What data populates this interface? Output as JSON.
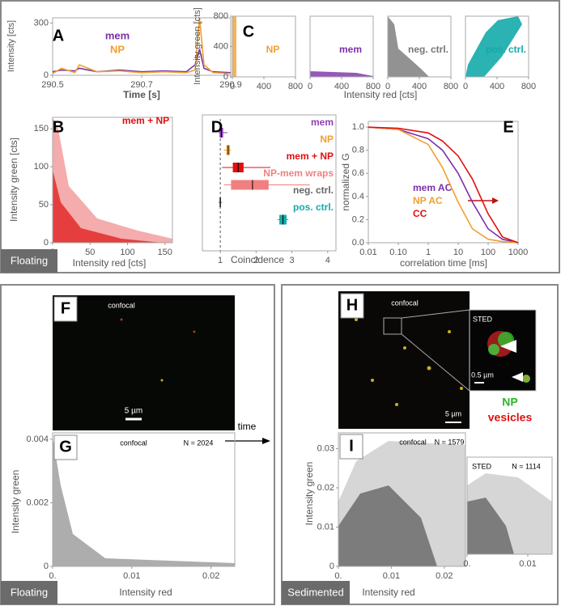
{
  "panels": {
    "A": {
      "label": "A",
      "xlabel": "Time [s]",
      "ylabel": "Intensity [cts]",
      "xlim": [
        290.5,
        290.9
      ],
      "xticks": [
        290.5,
        290.7,
        290.9
      ],
      "ylim": [
        0,
        330
      ],
      "yticks": [
        0,
        300
      ],
      "series": [
        {
          "name": "mem",
          "color": "#7b2fa8",
          "x": [
            290.5,
            290.52,
            290.55,
            290.56,
            290.6,
            290.65,
            290.7,
            290.75,
            290.8,
            290.82,
            290.83,
            290.84,
            290.86,
            290.9
          ],
          "values": [
            20,
            30,
            25,
            40,
            20,
            30,
            20,
            25,
            20,
            60,
            150,
            40,
            20,
            15
          ]
        },
        {
          "name": "NP",
          "color": "#f0a030",
          "x": [
            290.5,
            290.52,
            290.55,
            290.56,
            290.6,
            290.65,
            290.7,
            290.75,
            290.8,
            290.82,
            290.83,
            290.84,
            290.86,
            290.9
          ],
          "values": [
            10,
            40,
            15,
            60,
            20,
            25,
            15,
            20,
            15,
            30,
            330,
            60,
            15,
            10
          ]
        }
      ]
    },
    "C": {
      "label": "C",
      "xlabel": "Intensity red [cts]",
      "ylabel": "Intensity green [cts]",
      "xlim": [
        0,
        800
      ],
      "xticks": [
        0,
        400,
        800
      ],
      "ylim": [
        0,
        800
      ],
      "yticks": [
        0,
        400,
        800
      ],
      "plots": [
        {
          "name": "NP",
          "color": "#f0a030"
        },
        {
          "name": "mem",
          "color": "#7b2fa8"
        },
        {
          "name": "neg. ctrl.",
          "color": "#777777"
        },
        {
          "name": "pos. ctrl.",
          "color": "#14aaaa"
        }
      ]
    },
    "B": {
      "label": "B",
      "title": "mem + NP",
      "xlabel": "Intensity red [cts]",
      "ylabel": "Intensity green [cts]",
      "xlim": [
        0,
        160
      ],
      "xticks": [
        0,
        50,
        100,
        150
      ],
      "ylim": [
        0,
        165
      ],
      "yticks": [
        0,
        50,
        100,
        150
      ],
      "color": "#e01010",
      "tag": "Floating"
    },
    "D": {
      "label": "D",
      "xlabel": "Coincidence",
      "xlim": [
        0.5,
        4.23
      ],
      "xticks": [
        1,
        2,
        3,
        4
      ],
      "reference": 1,
      "boxes": [
        {
          "name": "mem",
          "color": "#8e3fb5",
          "min": 0.95,
          "q1": 0.98,
          "median": 1.03,
          "q3": 1.08,
          "max": 1.2
        },
        {
          "name": "NP",
          "color": "#f0a030",
          "min": 1.1,
          "q1": 1.17,
          "median": 1.22,
          "q3": 1.27,
          "max": 1.3
        },
        {
          "name": "mem + NP",
          "color": "#e01010",
          "min": 1.05,
          "q1": 1.35,
          "median": 1.5,
          "q3": 1.65,
          "max": 2.4
        },
        {
          "name": "NP-mem wraps",
          "color": "#f08080",
          "min": 1.1,
          "q1": 1.3,
          "median": 1.9,
          "q3": 2.35,
          "max": 3.5
        },
        {
          "name": "neg. ctrl.",
          "color": "#666666",
          "min": 0.95,
          "q1": 0.98,
          "median": 1,
          "q3": 1.02,
          "max": 1.05
        },
        {
          "name": "pos. ctrl.",
          "color": "#14aaaa",
          "min": 2.6,
          "q1": 2.65,
          "median": 2.75,
          "q3": 2.85,
          "max": 2.9
        }
      ]
    },
    "E": {
      "label": "E",
      "xlabel": "correlation time [ms]",
      "ylabel": "normalized G",
      "log_x": true,
      "xlim": [
        0.01,
        1000
      ],
      "xticks": [
        0.01,
        {
          "value": 0.1,
          "label": "0.10"
        },
        1,
        10,
        100,
        1000
      ],
      "ylim": [
        0,
        1.05
      ],
      "yticks": [
        {
          "value": 0,
          "label": "0.0"
        },
        0.2,
        0.4,
        0.6,
        0.8,
        {
          "value": 1,
          "label": "1.0"
        }
      ],
      "x": [
        0.01,
        0.1,
        1,
        3,
        10,
        30,
        100,
        300,
        1000
      ],
      "series": [
        {
          "name": "mem AC",
          "color": "#7b2fa8",
          "values": [
            1,
            0.98,
            0.9,
            0.8,
            0.6,
            0.35,
            0.12,
            0.03,
            0
          ]
        },
        {
          "name": "NP AC",
          "color": "#f0a030",
          "values": [
            1,
            0.98,
            0.85,
            0.65,
            0.35,
            0.12,
            0.03,
            0.01,
            0
          ]
        },
        {
          "name": "CC",
          "color": "#e01010",
          "values": [
            1,
            0.99,
            0.95,
            0.88,
            0.75,
            0.55,
            0.25,
            0.05,
            0
          ]
        }
      ]
    },
    "F": {
      "label": "F",
      "caption": "confocal",
      "scalebar": "5 µm"
    },
    "G": {
      "label": "G",
      "caption": "confocal",
      "count": "N = 2024",
      "xlabel": "Intensity red",
      "ylabel": "Intensity green",
      "xlim": [
        0,
        0.023
      ],
      "xticks": [
        {
          "value": 0,
          "label": "0."
        },
        0.01,
        0.02
      ],
      "ylim": [
        0,
        0.0042
      ],
      "yticks": [
        0,
        0.002,
        0.004
      ],
      "tag": "Floating"
    },
    "arrow": {
      "label": "time"
    },
    "H": {
      "label": "H",
      "caption": "confocal",
      "inset": "STED",
      "inset_scalebar": "0.5 µm",
      "scalebar": "5 µm",
      "legend": [
        "NP",
        "vesicles"
      ]
    },
    "I": {
      "label": "I",
      "caption": "confocal",
      "count": "N = 1579",
      "xlabel": "Intensity red",
      "ylabel": "Intensity green",
      "xlim": [
        0,
        0.024
      ],
      "xticks": [
        {
          "value": 0,
          "label": "0."
        },
        0.01,
        0.02
      ],
      "ylim": [
        0,
        0.034
      ],
      "yticks": [
        0,
        0.01,
        0.02,
        0.03
      ],
      "tag": "Sedimented"
    },
    "I2": {
      "caption": "STED",
      "count": "N = 1114",
      "xlim": [
        0,
        0.014
      ],
      "xticks": [
        {
          "value": 0,
          "label": "0."
        },
        0.01
      ]
    }
  }
}
